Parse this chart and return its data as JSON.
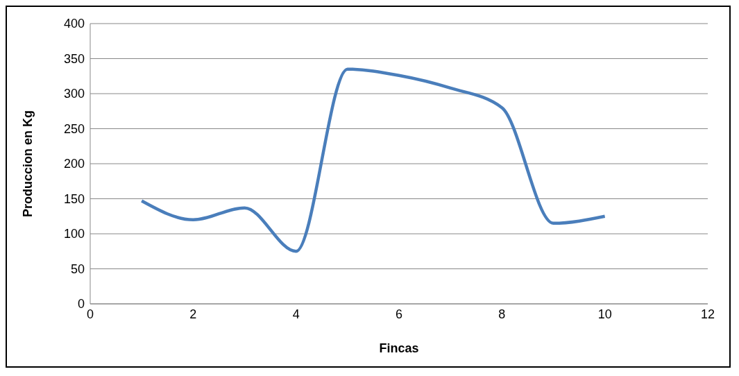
{
  "chart_data": {
    "type": "line",
    "xlabel": "Fincas",
    "ylabel": "Produccion en Kg",
    "x": [
      1,
      2,
      3,
      4,
      5,
      6,
      7,
      8,
      9,
      10
    ],
    "series": [
      {
        "color": "#4a7ebb",
        "values": [
          147,
          120,
          137,
          75,
          335,
          326,
          308,
          280,
          115,
          125
        ]
      }
    ],
    "xlim": [
      0,
      12
    ],
    "xticks": [
      0,
      2,
      4,
      6,
      8,
      10,
      12
    ],
    "ylim": [
      0,
      400
    ],
    "yticks": [
      0,
      50,
      100,
      150,
      200,
      250,
      300,
      350,
      400
    ],
    "grid": "y",
    "marker": "none",
    "line_style": "solid"
  }
}
